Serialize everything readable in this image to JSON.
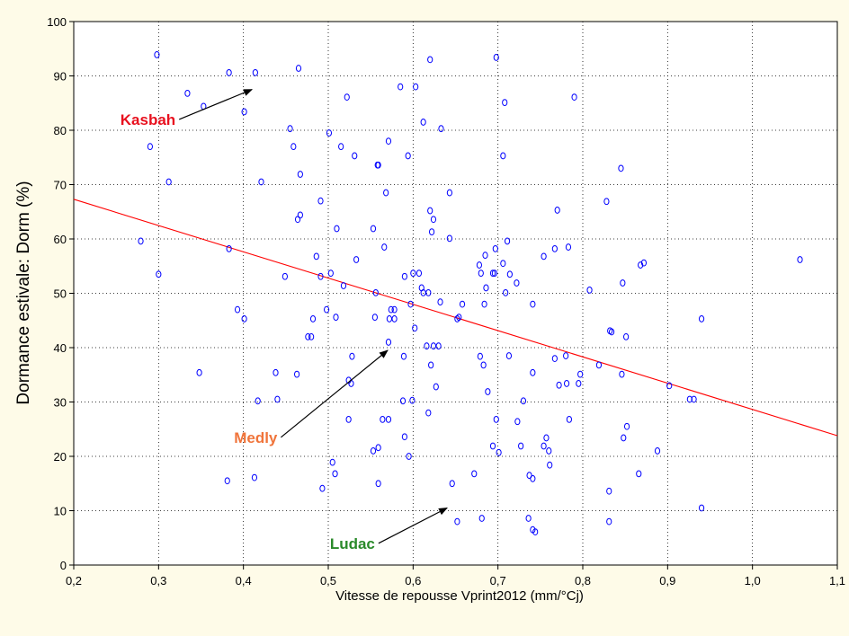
{
  "chart_data": {
    "type": "scatter",
    "title": "",
    "xlabel": "Vitesse de repousse Vprint2012 (mm/°Cj)",
    "ylabel": "Dormance estivale: Dorm (%)",
    "xlim": [
      0.2,
      1.1
    ],
    "ylim": [
      0,
      100
    ],
    "x_ticks": [
      "0,2",
      "0,3",
      "0,4",
      "0,5",
      "0,6",
      "0,7",
      "0,8",
      "0,9",
      "1,0",
      "1,1"
    ],
    "y_ticks": [
      "0",
      "10",
      "20",
      "30",
      "40",
      "50",
      "60",
      "70",
      "80",
      "90",
      "100"
    ],
    "x_tick_values": [
      0.2,
      0.3,
      0.4,
      0.5,
      0.6,
      0.7,
      0.8,
      0.9,
      1.0,
      1.1
    ],
    "y_tick_values": [
      0,
      10,
      20,
      30,
      40,
      50,
      60,
      70,
      80,
      90,
      100
    ],
    "grid": true,
    "marker_color": "#0000ff",
    "fit_color": "#ff0000",
    "fit_line": {
      "x": [
        0.2,
        1.1
      ],
      "y": [
        67.3,
        23.8
      ]
    },
    "annotations": [
      {
        "text": "Kasbah",
        "color": "#e8101e",
        "arrow_from": [
          0.32,
          82
        ],
        "arrow_to": [
          0.41,
          87.5
        ]
      },
      {
        "text": "Medly",
        "color": "#f0743a",
        "arrow_from": [
          0.44,
          23.5
        ],
        "arrow_to": [
          0.57,
          39.5
        ]
      },
      {
        "text": "Ludac",
        "color": "#2a8a2a",
        "arrow_from": [
          0.555,
          4
        ],
        "arrow_to": [
          0.64,
          10.5
        ]
      }
    ],
    "points": [
      [
        0.298,
        93.9
      ],
      [
        0.334,
        86.8
      ],
      [
        0.353,
        84.4
      ],
      [
        0.383,
        90.6
      ],
      [
        0.414,
        90.6
      ],
      [
        0.465,
        91.4
      ],
      [
        0.29,
        77
      ],
      [
        0.312,
        70.5
      ],
      [
        0.279,
        59.6
      ],
      [
        0.3,
        53.5
      ],
      [
        0.348,
        35.4
      ],
      [
        0.401,
        83.4
      ],
      [
        0.421,
        70.5
      ],
      [
        0.383,
        58.2
      ],
      [
        0.393,
        47
      ],
      [
        0.401,
        45.3
      ],
      [
        0.417,
        30.2
      ],
      [
        0.413,
        16.1
      ],
      [
        0.381,
        15.5
      ],
      [
        0.455,
        80.3
      ],
      [
        0.459,
        77
      ],
      [
        0.467,
        71.9
      ],
      [
        0.467,
        64.4
      ],
      [
        0.464,
        63.6
      ],
      [
        0.449,
        53.1
      ],
      [
        0.438,
        35.4
      ],
      [
        0.44,
        30.5
      ],
      [
        0.463,
        35.1
      ],
      [
        0.476,
        42
      ],
      [
        0.48,
        42
      ],
      [
        0.482,
        45.3
      ],
      [
        0.486,
        56.8
      ],
      [
        0.491,
        53.1
      ],
      [
        0.491,
        67
      ],
      [
        0.501,
        79.5
      ],
      [
        0.498,
        47
      ],
      [
        0.503,
        53.7
      ],
      [
        0.493,
        14.1
      ],
      [
        0.505,
        18.9
      ],
      [
        0.508,
        16.8
      ],
      [
        0.509,
        45.6
      ],
      [
        0.51,
        61.9
      ],
      [
        0.515,
        77
      ],
      [
        0.518,
        51.4
      ],
      [
        0.522,
        86.1
      ],
      [
        0.528,
        38.4
      ],
      [
        0.524,
        34
      ],
      [
        0.527,
        33.4
      ],
      [
        0.524,
        26.8
      ],
      [
        0.531,
        75.3
      ],
      [
        0.533,
        56.2
      ],
      [
        0.553,
        61.9
      ],
      [
        0.556,
        50.1
      ],
      [
        0.555,
        45.6
      ],
      [
        0.553,
        21
      ],
      [
        0.558,
        73.6
      ],
      [
        0.559,
        73.6
      ],
      [
        0.559,
        15
      ],
      [
        0.559,
        21.6
      ],
      [
        0.564,
        26.8
      ],
      [
        0.566,
        58.5
      ],
      [
        0.568,
        68.5
      ],
      [
        0.571,
        78
      ],
      [
        0.572,
        45.3
      ],
      [
        0.571,
        41
      ],
      [
        0.571,
        26.8
      ],
      [
        0.574,
        47
      ],
      [
        0.578,
        47
      ],
      [
        0.578,
        45.3
      ],
      [
        0.585,
        88
      ],
      [
        0.588,
        30.2
      ],
      [
        0.589,
        38.4
      ],
      [
        0.59,
        23.6
      ],
      [
        0.59,
        53.1
      ],
      [
        0.594,
        75.3
      ],
      [
        0.595,
        20
      ],
      [
        0.597,
        48
      ],
      [
        0.599,
        30.3
      ],
      [
        0.6,
        53.7
      ],
      [
        0.602,
        43.6
      ],
      [
        0.603,
        88
      ],
      [
        0.607,
        53.7
      ],
      [
        0.61,
        51
      ],
      [
        0.612,
        81.5
      ],
      [
        0.612,
        50.1
      ],
      [
        0.616,
        40.3
      ],
      [
        0.618,
        50.1
      ],
      [
        0.618,
        28
      ],
      [
        0.62,
        65.2
      ],
      [
        0.62,
        93
      ],
      [
        0.621,
        36.8
      ],
      [
        0.622,
        61.3
      ],
      [
        0.624,
        63.6
      ],
      [
        0.624,
        40.3
      ],
      [
        0.627,
        32.8
      ],
      [
        0.63,
        40.3
      ],
      [
        0.632,
        48.4
      ],
      [
        0.633,
        80.3
      ],
      [
        0.643,
        68.5
      ],
      [
        0.643,
        60.1
      ],
      [
        0.646,
        15
      ],
      [
        0.652,
        45.3
      ],
      [
        0.654,
        45.6
      ],
      [
        0.652,
        8
      ],
      [
        0.658,
        48
      ],
      [
        0.672,
        16.8
      ],
      [
        0.678,
        55.2
      ],
      [
        0.679,
        38.4
      ],
      [
        0.68,
        53.7
      ],
      [
        0.681,
        8.6
      ],
      [
        0.683,
        36.8
      ],
      [
        0.684,
        48
      ],
      [
        0.685,
        57
      ],
      [
        0.686,
        51
      ],
      [
        0.688,
        31.9
      ],
      [
        0.694,
        21.9
      ],
      [
        0.694,
        53.7
      ],
      [
        0.696,
        53.7
      ],
      [
        0.697,
        58.2
      ],
      [
        0.698,
        26.8
      ],
      [
        0.698,
        93.4
      ],
      [
        0.701,
        20.7
      ],
      [
        0.706,
        75.3
      ],
      [
        0.708,
        85.1
      ],
      [
        0.706,
        55.5
      ],
      [
        0.709,
        50.1
      ],
      [
        0.711,
        59.6
      ],
      [
        0.714,
        53.5
      ],
      [
        0.713,
        38.5
      ],
      [
        0.722,
        51.9
      ],
      [
        0.723,
        26.4
      ],
      [
        0.727,
        21.9
      ],
      [
        0.73,
        30.2
      ],
      [
        0.736,
        8.6
      ],
      [
        0.737,
        16.5
      ],
      [
        0.741,
        48
      ],
      [
        0.741,
        35.4
      ],
      [
        0.741,
        15.9
      ],
      [
        0.741,
        6.5
      ],
      [
        0.744,
        6.1
      ],
      [
        0.754,
        56.8
      ],
      [
        0.754,
        21.9
      ],
      [
        0.757,
        23.4
      ],
      [
        0.76,
        21
      ],
      [
        0.761,
        18.4
      ],
      [
        0.767,
        58.2
      ],
      [
        0.767,
        38
      ],
      [
        0.77,
        65.3
      ],
      [
        0.772,
        33.1
      ],
      [
        0.78,
        38.5
      ],
      [
        0.781,
        33.4
      ],
      [
        0.783,
        58.5
      ],
      [
        0.784,
        26.8
      ],
      [
        0.79,
        86.1
      ],
      [
        0.795,
        33.4
      ],
      [
        0.797,
        35.1
      ],
      [
        0.808,
        50.6
      ],
      [
        0.819,
        36.8
      ],
      [
        0.828,
        66.9
      ],
      [
        0.832,
        43.1
      ],
      [
        0.831,
        13.6
      ],
      [
        0.831,
        8
      ],
      [
        0.834,
        42.9
      ],
      [
        0.845,
        73
      ],
      [
        0.846,
        35.1
      ],
      [
        0.847,
        51.9
      ],
      [
        0.848,
        23.4
      ],
      [
        0.852,
        25.5
      ],
      [
        0.851,
        42
      ],
      [
        0.868,
        55.2
      ],
      [
        0.872,
        55.6
      ],
      [
        0.866,
        16.8
      ],
      [
        0.888,
        21
      ],
      [
        0.902,
        33
      ],
      [
        0.926,
        30.5
      ],
      [
        0.931,
        30.5
      ],
      [
        0.94,
        10.5
      ],
      [
        0.94,
        45.3
      ],
      [
        1.056,
        56.2
      ]
    ]
  }
}
